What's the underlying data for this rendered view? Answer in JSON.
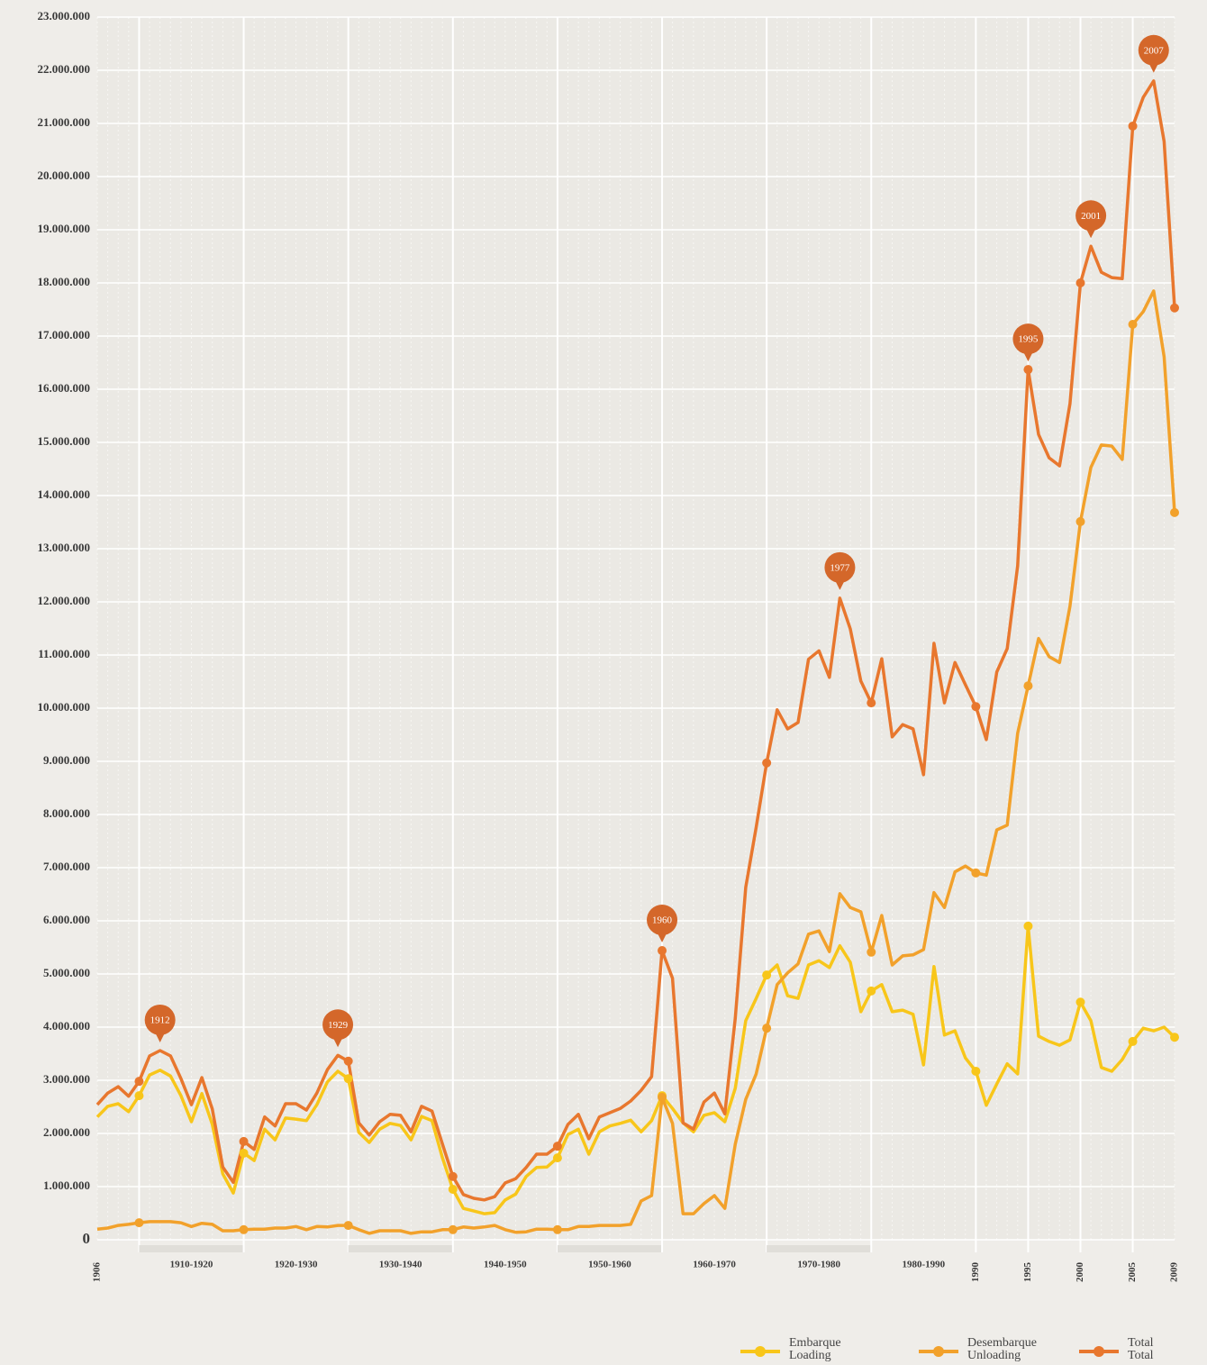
{
  "chart_data": {
    "type": "line",
    "x": [
      1906,
      1907,
      1908,
      1909,
      1910,
      1911,
      1912,
      1913,
      1914,
      1915,
      1916,
      1917,
      1918,
      1919,
      1920,
      1921,
      1922,
      1923,
      1924,
      1925,
      1926,
      1927,
      1928,
      1929,
      1930,
      1931,
      1932,
      1933,
      1934,
      1935,
      1936,
      1937,
      1938,
      1939,
      1940,
      1941,
      1942,
      1943,
      1944,
      1945,
      1946,
      1947,
      1948,
      1949,
      1950,
      1951,
      1952,
      1953,
      1954,
      1955,
      1956,
      1957,
      1958,
      1959,
      1960,
      1961,
      1962,
      1963,
      1964,
      1965,
      1966,
      1967,
      1968,
      1969,
      1970,
      1971,
      1972,
      1973,
      1974,
      1975,
      1976,
      1977,
      1978,
      1979,
      1980,
      1981,
      1982,
      1983,
      1984,
      1985,
      1986,
      1987,
      1988,
      1989,
      1990,
      1991,
      1992,
      1993,
      1994,
      1995,
      1996,
      1997,
      1998,
      1999,
      2000,
      2001,
      2002,
      2003,
      2004,
      2005,
      2006,
      2007,
      2008,
      2009
    ],
    "series": [
      {
        "name": "Embarque\nLoading",
        "color": "#f8c61a",
        "values": [
          2310000,
          2510000,
          2560000,
          2410000,
          2710000,
          3100000,
          3190000,
          3080000,
          2710000,
          2220000,
          2750000,
          2170000,
          1240000,
          880000,
          1630000,
          1490000,
          2080000,
          1880000,
          2290000,
          2270000,
          2240000,
          2540000,
          2970000,
          3170000,
          3030000,
          2020000,
          1830000,
          2080000,
          2190000,
          2150000,
          1880000,
          2320000,
          2240000,
          1540000,
          950000,
          590000,
          540000,
          490000,
          510000,
          750000,
          860000,
          1190000,
          1360000,
          1370000,
          1540000,
          1980000,
          2080000,
          1610000,
          2030000,
          2140000,
          2190000,
          2250000,
          2030000,
          2240000,
          2710000,
          2470000,
          2200000,
          2030000,
          2340000,
          2390000,
          2220000,
          2850000,
          4120000,
          4540000,
          4980000,
          5170000,
          4590000,
          4540000,
          5170000,
          5250000,
          5120000,
          5530000,
          5220000,
          4290000,
          4680000,
          4800000,
          4290000,
          4320000,
          4240000,
          3290000,
          5140000,
          3850000,
          3930000,
          3420000,
          3170000,
          2530000,
          2930000,
          3310000,
          3120000,
          5900000,
          3830000,
          3730000,
          3660000,
          3760000,
          4470000,
          4120000,
          3240000,
          3170000,
          3390000,
          3730000,
          3980000,
          3930000,
          4000000,
          3810000
        ]
      },
      {
        "name": "Desembarque\nUnloading",
        "color": "#f2a12b",
        "values": [
          200000,
          220000,
          270000,
          290000,
          320000,
          340000,
          340000,
          340000,
          320000,
          250000,
          310000,
          290000,
          170000,
          170000,
          190000,
          200000,
          200000,
          220000,
          220000,
          250000,
          190000,
          250000,
          240000,
          270000,
          270000,
          190000,
          120000,
          170000,
          170000,
          170000,
          120000,
          150000,
          150000,
          190000,
          190000,
          240000,
          220000,
          240000,
          270000,
          190000,
          140000,
          150000,
          200000,
          200000,
          190000,
          190000,
          250000,
          250000,
          270000,
          270000,
          270000,
          290000,
          730000,
          830000,
          2680000,
          2190000,
          490000,
          490000,
          680000,
          830000,
          590000,
          1800000,
          2640000,
          3120000,
          3980000,
          4800000,
          5020000,
          5190000,
          5750000,
          5810000,
          5420000,
          6510000,
          6250000,
          6170000,
          5410000,
          6100000,
          5170000,
          5340000,
          5360000,
          5460000,
          6530000,
          6250000,
          6920000,
          7030000,
          6900000,
          6860000,
          7710000,
          7800000,
          9530000,
          10420000,
          11310000,
          10970000,
          10860000,
          11920000,
          13510000,
          14530000,
          14950000,
          14930000,
          14680000,
          17220000,
          17460000,
          17850000,
          16610000,
          13680000
        ]
      },
      {
        "name": "Total\nTotal",
        "color": "#e8772e",
        "values": [
          2540000,
          2760000,
          2880000,
          2700000,
          2980000,
          3460000,
          3560000,
          3460000,
          3030000,
          2540000,
          3050000,
          2460000,
          1370000,
          1080000,
          1850000,
          1700000,
          2310000,
          2140000,
          2560000,
          2560000,
          2440000,
          2760000,
          3200000,
          3470000,
          3360000,
          2200000,
          1970000,
          2220000,
          2360000,
          2340000,
          2030000,
          2510000,
          2420000,
          1800000,
          1190000,
          850000,
          780000,
          750000,
          810000,
          1070000,
          1150000,
          1360000,
          1610000,
          1610000,
          1760000,
          2170000,
          2360000,
          1900000,
          2310000,
          2390000,
          2470000,
          2610000,
          2810000,
          3070000,
          5440000,
          4920000,
          2200000,
          2080000,
          2590000,
          2760000,
          2370000,
          4170000,
          6630000,
          7760000,
          8970000,
          9970000,
          9610000,
          9730000,
          10920000,
          11080000,
          10580000,
          12070000,
          11490000,
          10510000,
          10100000,
          10930000,
          9460000,
          9690000,
          9610000,
          8750000,
          11220000,
          10100000,
          10860000,
          10440000,
          10030000,
          9410000,
          10680000,
          11120000,
          12680000,
          16370000,
          15150000,
          14710000,
          14560000,
          15730000,
          18000000,
          18690000,
          18200000,
          18100000,
          18080000,
          20950000,
          21490000,
          21800000,
          20660000,
          17530000
        ]
      }
    ],
    "annotations": [
      1912,
      1929,
      1960,
      1977,
      1995,
      2001,
      2007
    ],
    "xlim": [
      1906,
      2009
    ],
    "xticks": [
      1906,
      {
        "value": 1915,
        "label": "1910-1920"
      },
      {
        "value": 1925,
        "label": "1920-1930"
      },
      {
        "value": 1935,
        "label": "1930-1940"
      },
      {
        "value": 1945,
        "label": "1940-1950"
      },
      {
        "value": 1955,
        "label": "1950-1960"
      },
      {
        "value": 1965,
        "label": "1960-1970"
      },
      {
        "value": 1975,
        "label": "1970-1980"
      },
      {
        "value": 1985,
        "label": "1980-1990"
      },
      1990,
      1995,
      2000,
      2005,
      2009
    ],
    "ylim": [
      0,
      23000000
    ],
    "yticks": [
      0,
      {
        "value": 1000000,
        "label": "1.000.000"
      },
      {
        "value": 2000000,
        "label": "2.000.000"
      },
      {
        "value": 3000000,
        "label": "3.000.000"
      },
      {
        "value": 4000000,
        "label": "4.000.000"
      },
      {
        "value": 5000000,
        "label": "5.000.000"
      },
      {
        "value": 6000000,
        "label": "6.000.000"
      },
      {
        "value": 7000000,
        "label": "7.000.000"
      },
      {
        "value": 8000000,
        "label": "8.000.000"
      },
      {
        "value": 9000000,
        "label": "9.000.000"
      },
      {
        "value": 10000000,
        "label": "10.000.000"
      },
      {
        "value": 11000000,
        "label": "11.000.000"
      },
      {
        "value": 12000000,
        "label": "12.000.000"
      },
      {
        "value": 13000000,
        "label": "13.000.000"
      },
      {
        "value": 14000000,
        "label": "14.000.000"
      },
      {
        "value": 15000000,
        "label": "15.000.000"
      },
      {
        "value": 16000000,
        "label": "16.000.000"
      },
      {
        "value": 17000000,
        "label": "17.000.000"
      },
      {
        "value": 18000000,
        "label": "18.000.000"
      },
      {
        "value": 19000000,
        "label": "19.000.000"
      },
      {
        "value": 20000000,
        "label": "20.000.000"
      },
      {
        "value": 21000000,
        "label": "21.000.000"
      },
      {
        "value": 22000000,
        "label": "22.000.000"
      },
      {
        "value": 23000000,
        "label": "23.000.000"
      }
    ],
    "grid": true,
    "legend": "bottom-right",
    "annotation_color": "#d4672a"
  }
}
